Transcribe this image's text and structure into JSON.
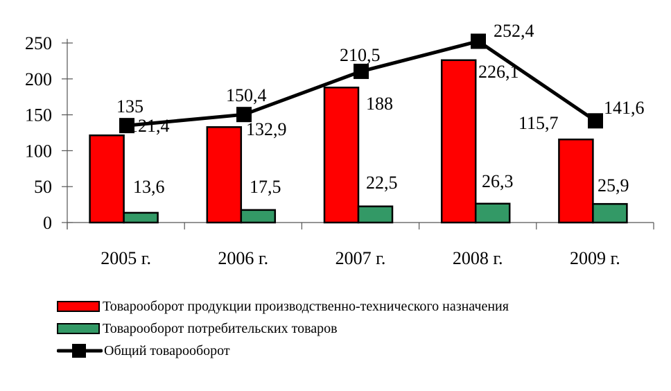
{
  "chart_data": {
    "type": "bar",
    "title": "",
    "xlabel": "",
    "ylabel": "",
    "ylim": [
      0,
      250
    ],
    "yticks": [
      0,
      50,
      100,
      150,
      200,
      250
    ],
    "categories": [
      "2005 г.",
      "2006 г.",
      "2007 г.",
      "2008 г.",
      "2009 г."
    ],
    "series": [
      {
        "name": "Товарооборот продукции производственно-технического назначения",
        "kind": "bar",
        "color": "#ff0000",
        "values": [
          121.4,
          132.9,
          188,
          226.1,
          115.7
        ],
        "labels": [
          "121,4",
          "132,9",
          "188",
          "226,1",
          "115,7"
        ]
      },
      {
        "name": "Товарооборот потребительских товаров",
        "kind": "bar",
        "color": "#339966",
        "values": [
          13.6,
          17.5,
          22.5,
          26.3,
          25.9
        ],
        "labels": [
          "13,6",
          "17,5",
          "22,5",
          "26,3",
          "25,9"
        ]
      },
      {
        "name": "Общий товарооборот",
        "kind": "line",
        "color": "#000000",
        "marker": "square",
        "values": [
          135,
          150.4,
          210.5,
          252.4,
          141.6
        ],
        "labels": [
          "135",
          "150,4",
          "210,5",
          "252,4",
          "141,6"
        ]
      }
    ],
    "grid": false,
    "legend_position": "bottom"
  },
  "legend": {
    "items": [
      {
        "label": "Товарооборот продукции производственно-технического назначения"
      },
      {
        "label": "Товарооборот потребительских товаров"
      },
      {
        "label": "Общий товарооборот"
      }
    ]
  }
}
